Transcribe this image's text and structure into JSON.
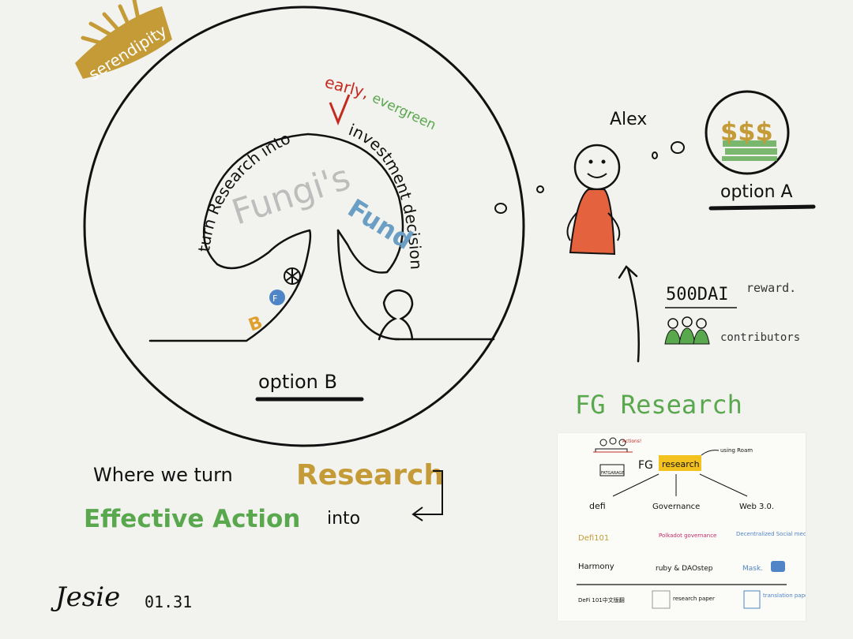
{
  "badge": {
    "text": "serendipity"
  },
  "main_circle": {
    "arc_text": "turn Research into",
    "insert_early": "early,",
    "insert_evergreen": "evergreen",
    "arc_text_2": "investment decision",
    "fungis": "Fungi's",
    "fund": "Fund",
    "option_b": "option B"
  },
  "alex": {
    "name": "Alex",
    "dollars": "$$$",
    "option_a": "option A"
  },
  "reward": {
    "amount": "500DAI",
    "label": "reward.",
    "contributors": "contributors"
  },
  "fg_research": {
    "title": "FG Research"
  },
  "tagline": {
    "line1": "Where we turn",
    "research": "Research",
    "effective": "Effective Action",
    "into": "into"
  },
  "signature": {
    "name": "Jesie",
    "date": "01.31"
  },
  "card": {
    "actions": "Actions!",
    "fatgarage": "FATGARAGE",
    "fg": "FG",
    "research": "research",
    "using_roam": "using Roam",
    "categories": [
      "defi",
      "Governance",
      "Web 3.0."
    ],
    "row1": [
      "Defi101",
      "Polkadot governance",
      "Decentralized Social media."
    ],
    "row2": [
      "Harmony",
      "ruby & DAOstep",
      "Mask."
    ],
    "bottom": [
      "DeFi 101中文版翻",
      "research paper",
      "translation paper."
    ]
  },
  "colors": {
    "gold": "#c49b36",
    "green": "#5aa84e",
    "red": "#c42a1f",
    "blue": "#6a9ec4",
    "orange": "#e4623e",
    "grey": "#bdbdbd"
  }
}
